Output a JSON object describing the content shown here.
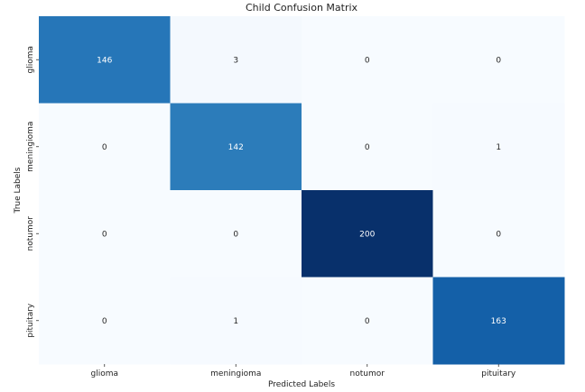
{
  "chart_data": {
    "type": "heatmap",
    "title": "Child Confusion Matrix",
    "xlabel": "Predicted Labels",
    "ylabel": "True Labels",
    "x_categories": [
      "glioma",
      "meningioma",
      "notumor",
      "pituitary"
    ],
    "y_categories": [
      "glioma",
      "meningioma",
      "notumor",
      "pituitary"
    ],
    "values": [
      [
        146,
        3,
        0,
        0
      ],
      [
        0,
        142,
        0,
        1
      ],
      [
        0,
        0,
        200,
        0
      ],
      [
        0,
        1,
        0,
        163
      ]
    ],
    "colormap": "Blues",
    "value_range": [
      0,
      200
    ],
    "colorbar": false,
    "grid": false
  }
}
